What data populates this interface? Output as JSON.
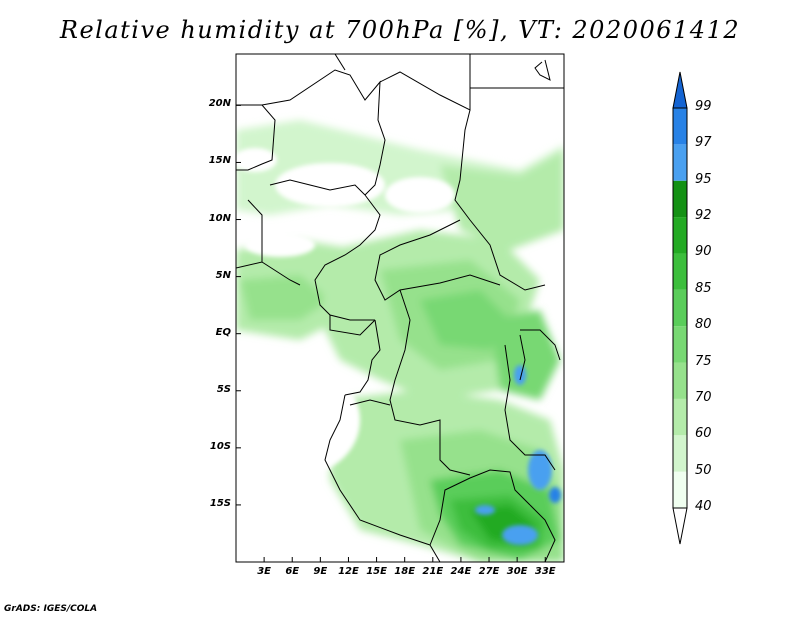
{
  "title": "Relative humidity at 700hPa [%], VT: 2020061412",
  "footer": "GrADS: IGES/COLA",
  "lat_axis": [
    {
      "label": "20N",
      "lat": 20
    },
    {
      "label": "15N",
      "lat": 15
    },
    {
      "label": "10N",
      "lat": 10
    },
    {
      "label": "5N",
      "lat": 5
    },
    {
      "label": "EQ",
      "lat": 0
    },
    {
      "label": "5S",
      "lat": -5
    },
    {
      "label": "10S",
      "lat": -10
    },
    {
      "label": "15S",
      "lat": -15
    }
  ],
  "lon_axis": [
    {
      "label": "3E",
      "lon": 3
    },
    {
      "label": "6E",
      "lon": 6
    },
    {
      "label": "9E",
      "lon": 9
    },
    {
      "label": "12E",
      "lon": 12
    },
    {
      "label": "15E",
      "lon": 15
    },
    {
      "label": "18E",
      "lon": 18
    },
    {
      "label": "21E",
      "lon": 21
    },
    {
      "label": "24E",
      "lon": 24
    },
    {
      "label": "27E",
      "lon": 27
    },
    {
      "label": "30E",
      "lon": 30
    },
    {
      "label": "33E",
      "lon": 33
    }
  ],
  "colorbar": {
    "levels": [
      "40",
      "50",
      "60",
      "70",
      "75",
      "80",
      "85",
      "90",
      "92",
      "95",
      "97",
      "99"
    ],
    "colors": [
      "#f0fff0",
      "#d2f5cd",
      "#b4ebaa",
      "#96e18c",
      "#78d873",
      "#5acd5a",
      "#3cbe3c",
      "#23aa23",
      "#149114",
      "#4aa0f0",
      "#2882e6",
      "#1464d2"
    ],
    "under_color": "#ffffff",
    "over_color": "#1464d2"
  }
}
